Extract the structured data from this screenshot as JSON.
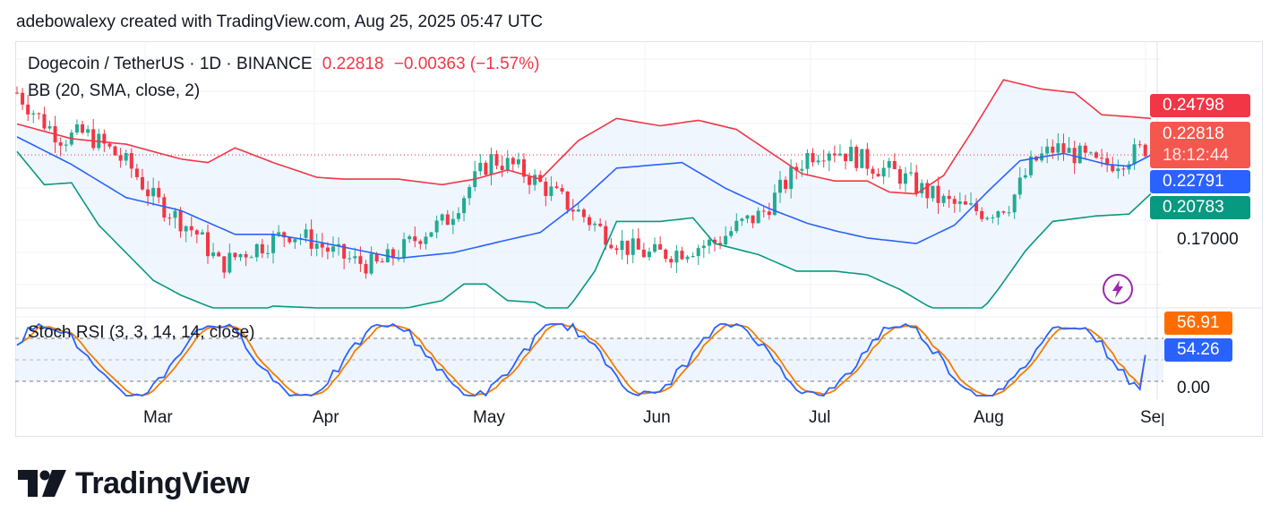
{
  "header": "adebowalexy created with TradingView.com, Aug 25, 2025 05:47 UTC",
  "legend": {
    "symbol": "Dogecoin / TetherUS · 1D · BINANCE",
    "price": "0.22818",
    "change": "−0.00363 (−1.57%)",
    "indicator": "BB (20, SMA, close, 2)",
    "stoch": "Stoch RSI (3, 3, 14, 14, close)"
  },
  "price_axis": {
    "tags": {
      "bb_upper": "0.24798",
      "last": "0.22818",
      "countdown": "18:12:44",
      "bb_basis": "0.22791",
      "bb_lower": "0.20783"
    },
    "tick_label": "0.17000"
  },
  "stoch_axis": {
    "k_tag": "56.91",
    "d_tag": "54.26",
    "tick_label": "0.00"
  },
  "time_axis": [
    "Mar",
    "Apr",
    "May",
    "Jun",
    "Jul",
    "Aug",
    "Sep"
  ],
  "brand": "TradingView",
  "colors": {
    "up": "#22ab94",
    "down": "#f23645",
    "basis": "#2962ff",
    "band_upper": "#f23645",
    "band_lower": "#089981",
    "band_fill": "#e3effd",
    "stoch_k": "#2962ff",
    "stoch_d": "#f57c00",
    "k_tag": "#ff6d00",
    "d_tag": "#2962ff"
  },
  "chart_data": {
    "type": "candlestick",
    "x_range": [
      "2025-02-12",
      "2025-08-25"
    ],
    "y_range": [
      0.145,
      0.29
    ],
    "bb_upper": [
      [
        0,
        0.245
      ],
      [
        10,
        0.237
      ],
      [
        20,
        0.234
      ],
      [
        30,
        0.226
      ],
      [
        35,
        0.224
      ],
      [
        40,
        0.232
      ],
      [
        47,
        0.224
      ],
      [
        55,
        0.216
      ],
      [
        60,
        0.215
      ],
      [
        70,
        0.215
      ],
      [
        78,
        0.212
      ],
      [
        84,
        0.215
      ],
      [
        90,
        0.22
      ],
      [
        96,
        0.215
      ],
      [
        103,
        0.236
      ],
      [
        110,
        0.248
      ],
      [
        118,
        0.244
      ],
      [
        125,
        0.247
      ],
      [
        132,
        0.242
      ],
      [
        138,
        0.23
      ],
      [
        144,
        0.218
      ],
      [
        150,
        0.214
      ],
      [
        156,
        0.214
      ],
      [
        160,
        0.208
      ],
      [
        165,
        0.207
      ],
      [
        170,
        0.217
      ],
      [
        175,
        0.24
      ],
      [
        181,
        0.269
      ],
      [
        188,
        0.264
      ],
      [
        194,
        0.262
      ],
      [
        199,
        0.25
      ],
      [
        204,
        0.249
      ],
      [
        208,
        0.248
      ]
    ],
    "bb_basis": [
      [
        0,
        0.238
      ],
      [
        10,
        0.223
      ],
      [
        20,
        0.205
      ],
      [
        30,
        0.198
      ],
      [
        40,
        0.185
      ],
      [
        47,
        0.185
      ],
      [
        55,
        0.181
      ],
      [
        60,
        0.178
      ],
      [
        70,
        0.172
      ],
      [
        80,
        0.175
      ],
      [
        90,
        0.182
      ],
      [
        96,
        0.186
      ],
      [
        103,
        0.202
      ],
      [
        110,
        0.221
      ],
      [
        118,
        0.223
      ],
      [
        122,
        0.224
      ],
      [
        130,
        0.21
      ],
      [
        138,
        0.199
      ],
      [
        145,
        0.191
      ],
      [
        150,
        0.187
      ],
      [
        156,
        0.183
      ],
      [
        165,
        0.18
      ],
      [
        172,
        0.19
      ],
      [
        178,
        0.208
      ],
      [
        184,
        0.225
      ],
      [
        192,
        0.229
      ],
      [
        200,
        0.223
      ],
      [
        204,
        0.222
      ],
      [
        208,
        0.228
      ]
    ],
    "bb_lower": [
      [
        0,
        0.23
      ],
      [
        5,
        0.212
      ],
      [
        10,
        0.213
      ],
      [
        15,
        0.19
      ],
      [
        20,
        0.175
      ],
      [
        25,
        0.16
      ],
      [
        30,
        0.152
      ],
      [
        35,
        0.146
      ],
      [
        40,
        0.138
      ],
      [
        47,
        0.146
      ],
      [
        55,
        0.145
      ],
      [
        60,
        0.144
      ],
      [
        70,
        0.144
      ],
      [
        78,
        0.149
      ],
      [
        82,
        0.158
      ],
      [
        86,
        0.158
      ],
      [
        90,
        0.149
      ],
      [
        95,
        0.148
      ],
      [
        100,
        0.14
      ],
      [
        106,
        0.165
      ],
      [
        110,
        0.192
      ],
      [
        118,
        0.192
      ],
      [
        124,
        0.194
      ],
      [
        128,
        0.18
      ],
      [
        136,
        0.174
      ],
      [
        143,
        0.165
      ],
      [
        150,
        0.165
      ],
      [
        156,
        0.163
      ],
      [
        162,
        0.155
      ],
      [
        170,
        0.141
      ],
      [
        176,
        0.14
      ],
      [
        180,
        0.155
      ],
      [
        185,
        0.176
      ],
      [
        190,
        0.192
      ],
      [
        198,
        0.195
      ],
      [
        204,
        0.196
      ],
      [
        208,
        0.207
      ]
    ],
    "close_approx": [
      0.262,
      0.248,
      0.237,
      0.24,
      0.232,
      0.222,
      0.205,
      0.195,
      0.185,
      0.168,
      0.175,
      0.18,
      0.186,
      0.182,
      0.175,
      0.17,
      0.168,
      0.176,
      0.186,
      0.192,
      0.21,
      0.226,
      0.222,
      0.214,
      0.205,
      0.196,
      0.186,
      0.178,
      0.174,
      0.175,
      0.178,
      0.181,
      0.19,
      0.196,
      0.212,
      0.228,
      0.232,
      0.228,
      0.222,
      0.218,
      0.21,
      0.203,
      0.199,
      0.197,
      0.202,
      0.224,
      0.232,
      0.228,
      0.222,
      0.226,
      0.232
    ],
    "last_price": 0.22818,
    "stoch_rsi": {
      "k_last": 56.91,
      "d_last": 54.26,
      "range": [
        0,
        100
      ],
      "bands": [
        20,
        80
      ]
    },
    "xlabel": "",
    "ylabel": ""
  }
}
